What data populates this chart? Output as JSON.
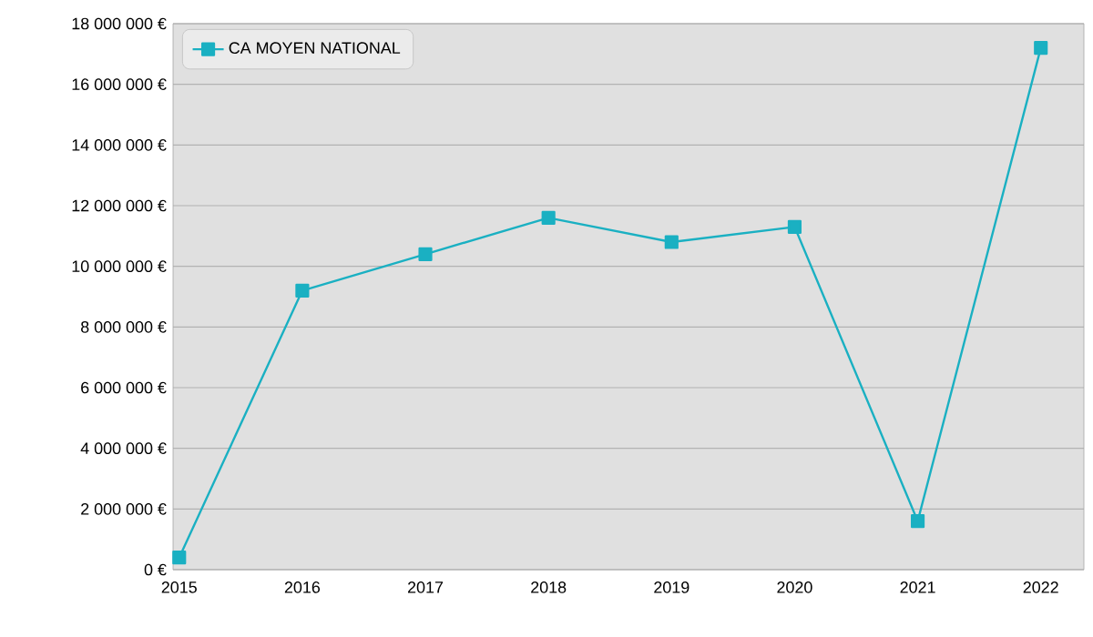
{
  "chart_data": {
    "type": "line",
    "categories": [
      "2015",
      "2016",
      "2017",
      "2018",
      "2019",
      "2020",
      "2021",
      "2022"
    ],
    "series": [
      {
        "name": "CA MOYEN NATIONAL",
        "color": "#1ab0c2",
        "values": [
          400000,
          9200000,
          10400000,
          11600000,
          10800000,
          11300000,
          1600000,
          17200000
        ]
      }
    ],
    "ylim": [
      0,
      18000000
    ],
    "yticks": [
      {
        "value": 0,
        "label": "0 €"
      },
      {
        "value": 2000000,
        "label": "2 000 000 €"
      },
      {
        "value": 4000000,
        "label": "4 000 000 €"
      },
      {
        "value": 6000000,
        "label": "6 000 000 €"
      },
      {
        "value": 8000000,
        "label": "8 000 000 €"
      },
      {
        "value": 10000000,
        "label": "10 000 000 €"
      },
      {
        "value": 12000000,
        "label": "12 000 000 €"
      },
      {
        "value": 14000000,
        "label": "14 000 000 €"
      },
      {
        "value": 16000000,
        "label": "16 000 000 €"
      },
      {
        "value": 18000000,
        "label": "18 000 000 €"
      }
    ],
    "grid": "y",
    "legend": "top left",
    "marker": "square",
    "line_style": "solid"
  }
}
